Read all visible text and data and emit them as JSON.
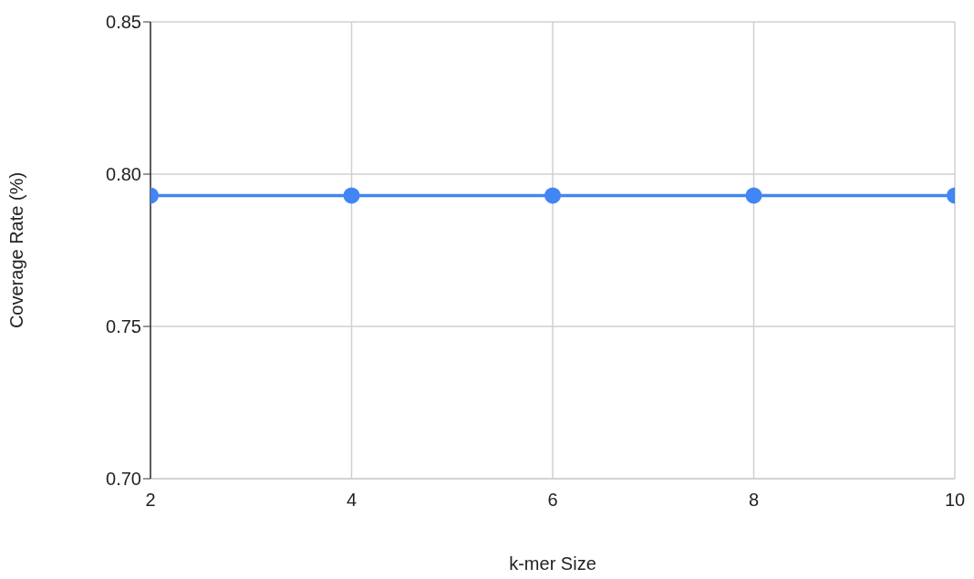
{
  "chart_data": {
    "type": "line",
    "xlabel": "k-mer Size",
    "ylabel": "Coverage Rate (%)",
    "x": [
      2,
      4,
      6,
      8,
      10
    ],
    "series": [
      {
        "color": "#4285f4",
        "values": [
          0.793,
          0.793,
          0.793,
          0.793,
          0.793
        ]
      }
    ],
    "xlim": [
      2,
      10
    ],
    "xticks": [
      2,
      4,
      6,
      8,
      10
    ],
    "ylim": [
      0.7,
      0.85
    ],
    "yticks": [
      {
        "value": 0.7,
        "label": "0.70"
      },
      {
        "value": 0.75,
        "label": "0.75"
      },
      {
        "value": 0.8,
        "label": "0.80"
      },
      {
        "value": 0.85,
        "label": "0.85"
      }
    ],
    "grid": true,
    "marker": "circle",
    "line_style": "solid"
  }
}
